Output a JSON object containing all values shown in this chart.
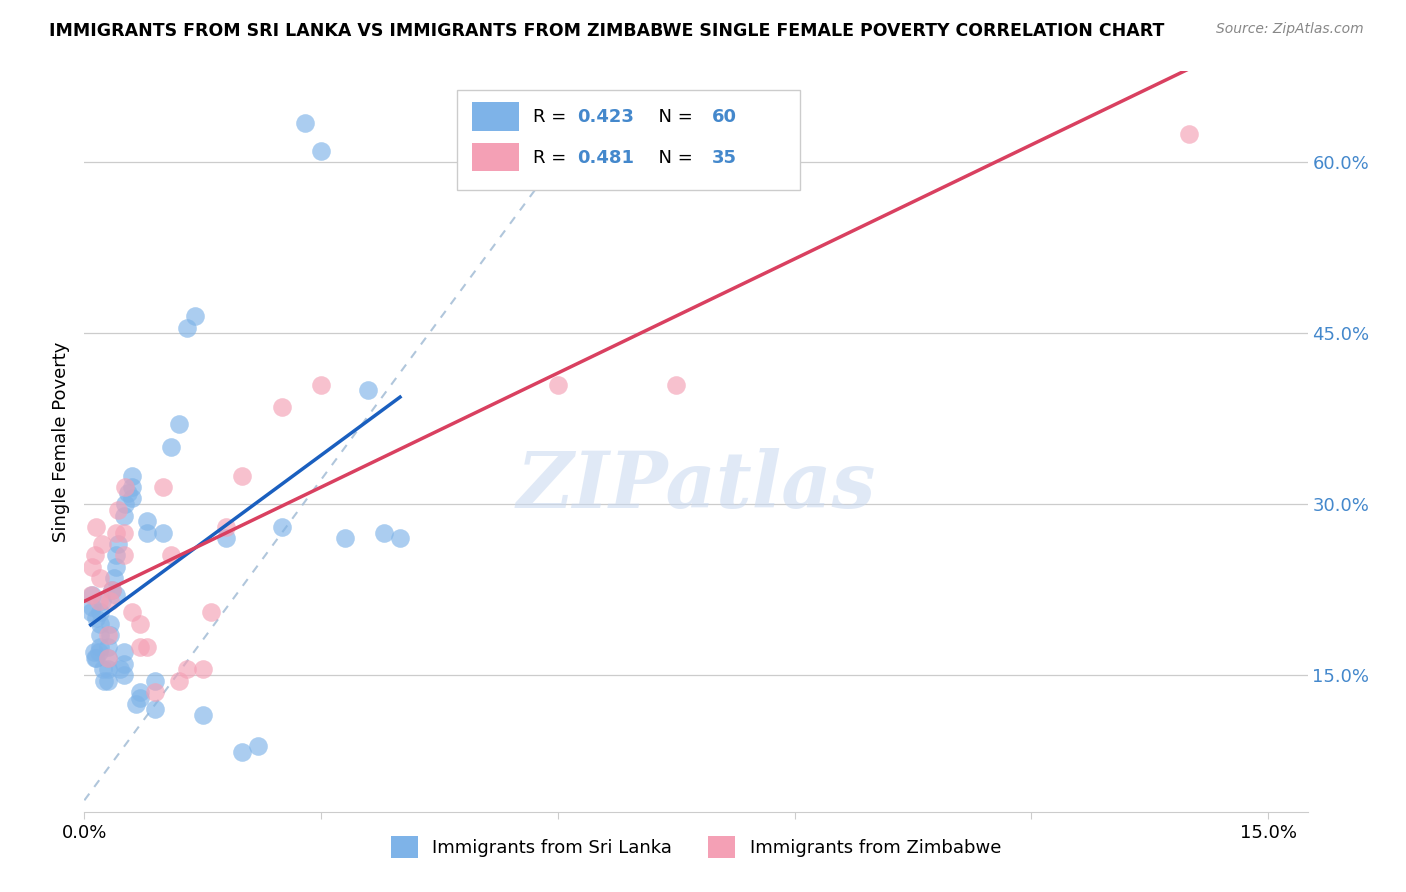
{
  "title": "IMMIGRANTS FROM SRI LANKA VS IMMIGRANTS FROM ZIMBABWE SINGLE FEMALE POVERTY CORRELATION CHART",
  "source": "Source: ZipAtlas.com",
  "ylabel": "Single Female Poverty",
  "xlim": [
    0.0,
    0.155
  ],
  "ylim": [
    0.03,
    0.68
  ],
  "xticks": [
    0.0,
    0.03,
    0.06,
    0.09,
    0.12,
    0.15
  ],
  "xtick_labels": [
    "0.0%",
    "",
    "",
    "",
    "",
    "15.0%"
  ],
  "yticks_right": [
    0.15,
    0.3,
    0.45,
    0.6
  ],
  "ytick_labels_right": [
    "15.0%",
    "30.0%",
    "45.0%",
    "60.0%"
  ],
  "sri_lanka_color": "#7eb3e8",
  "zimbabwe_color": "#f4a0b5",
  "sri_lanka_trend_color": "#1a5fbf",
  "zimbabwe_trend_color": "#d94060",
  "diag_color": "#a8c0d8",
  "legend_label1": "Immigrants from Sri Lanka",
  "legend_label2": "Immigrants from Zimbabwe",
  "watermark": "ZIPatlas",
  "sri_lanka_x": [
    0.0008,
    0.001,
    0.001,
    0.0012,
    0.0013,
    0.0015,
    0.0015,
    0.0018,
    0.002,
    0.002,
    0.002,
    0.002,
    0.0022,
    0.0023,
    0.0025,
    0.003,
    0.003,
    0.003,
    0.003,
    0.0032,
    0.0033,
    0.0035,
    0.0038,
    0.004,
    0.004,
    0.004,
    0.0042,
    0.0045,
    0.005,
    0.005,
    0.005,
    0.005,
    0.0052,
    0.0055,
    0.006,
    0.006,
    0.006,
    0.0065,
    0.007,
    0.007,
    0.008,
    0.008,
    0.009,
    0.009,
    0.01,
    0.011,
    0.012,
    0.013,
    0.014,
    0.015,
    0.018,
    0.02,
    0.022,
    0.025,
    0.028,
    0.03,
    0.033,
    0.036,
    0.038,
    0.04
  ],
  "sri_lanka_y": [
    0.205,
    0.21,
    0.22,
    0.17,
    0.165,
    0.165,
    0.2,
    0.17,
    0.175,
    0.185,
    0.195,
    0.205,
    0.215,
    0.155,
    0.145,
    0.145,
    0.155,
    0.165,
    0.175,
    0.185,
    0.195,
    0.225,
    0.235,
    0.245,
    0.22,
    0.255,
    0.265,
    0.155,
    0.15,
    0.16,
    0.17,
    0.29,
    0.3,
    0.31,
    0.305,
    0.315,
    0.325,
    0.125,
    0.13,
    0.135,
    0.275,
    0.285,
    0.145,
    0.12,
    0.275,
    0.35,
    0.37,
    0.455,
    0.465,
    0.115,
    0.27,
    0.082,
    0.088,
    0.28,
    0.635,
    0.61,
    0.27,
    0.4,
    0.275,
    0.27
  ],
  "zimbabwe_x": [
    0.0008,
    0.001,
    0.0013,
    0.0015,
    0.0018,
    0.002,
    0.0022,
    0.003,
    0.003,
    0.0032,
    0.0035,
    0.004,
    0.0042,
    0.005,
    0.005,
    0.0052,
    0.006,
    0.007,
    0.007,
    0.008,
    0.009,
    0.01,
    0.011,
    0.012,
    0.013,
    0.015,
    0.016,
    0.018,
    0.02,
    0.025,
    0.03,
    0.06,
    0.065,
    0.075,
    0.14
  ],
  "zimbabwe_y": [
    0.22,
    0.245,
    0.255,
    0.28,
    0.215,
    0.235,
    0.265,
    0.165,
    0.185,
    0.215,
    0.225,
    0.275,
    0.295,
    0.255,
    0.275,
    0.315,
    0.205,
    0.175,
    0.195,
    0.175,
    0.135,
    0.315,
    0.255,
    0.145,
    0.155,
    0.155,
    0.205,
    0.28,
    0.325,
    0.385,
    0.405,
    0.405,
    0.635,
    0.405,
    0.625
  ]
}
